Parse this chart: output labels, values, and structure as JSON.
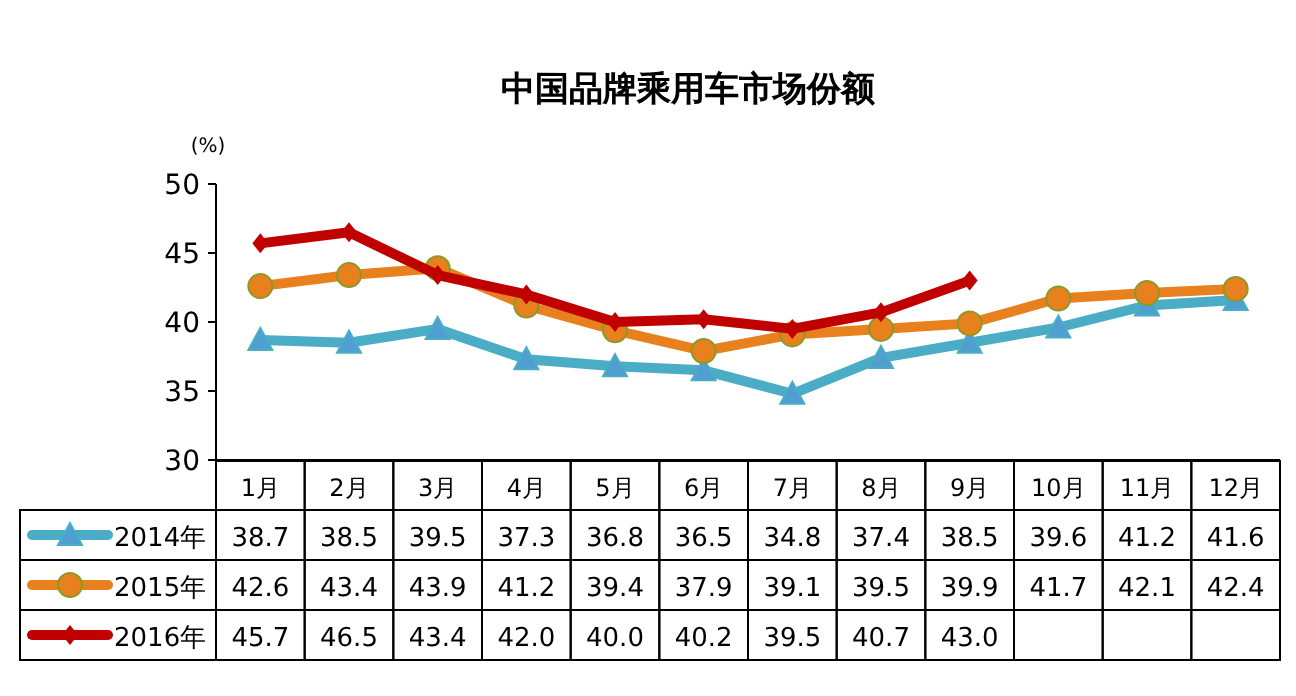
{
  "chart_data": {
    "type": "line",
    "title": "中国品牌乘用车市场份额",
    "ylabel": "(%)",
    "categories": [
      "1月",
      "2月",
      "3月",
      "4月",
      "5月",
      "6月",
      "7月",
      "8月",
      "9月",
      "10月",
      "11月",
      "12月"
    ],
    "ylim": [
      30,
      50
    ],
    "yticks": [
      30,
      35,
      40,
      45,
      50
    ],
    "grid": false,
    "legend": "bottom",
    "series": [
      {
        "name": "2014年",
        "color": "#4bacc6",
        "marker": "triangle",
        "values": [
          38.7,
          38.5,
          39.5,
          37.3,
          36.8,
          36.5,
          34.8,
          37.4,
          38.5,
          39.6,
          41.2,
          41.6
        ],
        "value_labels": [
          "38.7",
          "38.5",
          "39.5",
          "37.3",
          "36.8",
          "36.5",
          "34.8",
          "37.4",
          "38.5",
          "39.6",
          "41.2",
          "41.6"
        ]
      },
      {
        "name": "2015年",
        "color": "#e8801e",
        "marker": "circle",
        "values": [
          42.6,
          43.4,
          43.9,
          41.2,
          39.4,
          37.9,
          39.1,
          39.5,
          39.9,
          41.7,
          42.1,
          42.4
        ],
        "value_labels": [
          "42.6",
          "43.4",
          "43.9",
          "41.2",
          "39.4",
          "37.9",
          "39.1",
          "39.5",
          "39.9",
          "41.7",
          "42.1",
          "42.4"
        ]
      },
      {
        "name": "2016年",
        "color": "#c00000",
        "marker": "diamond",
        "values": [
          45.7,
          46.5,
          43.4,
          42.0,
          40.0,
          40.2,
          39.5,
          40.7,
          43.0,
          null,
          null,
          null
        ],
        "value_labels": [
          "45.7",
          "46.5",
          "43.4",
          "42.0",
          "40.0",
          "40.2",
          "39.5",
          "40.7",
          "43.0",
          null,
          null,
          null
        ]
      }
    ]
  }
}
